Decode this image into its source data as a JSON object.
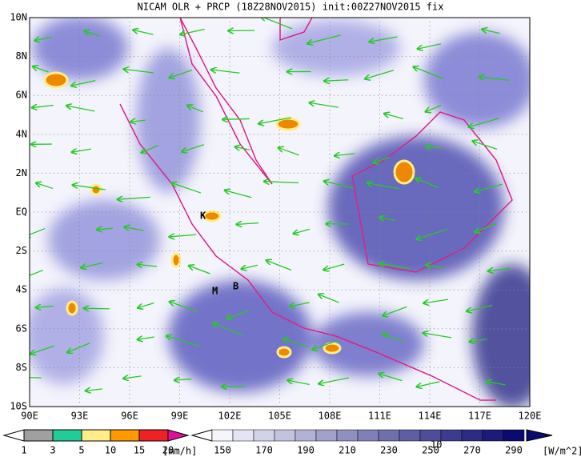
{
  "header": {
    "title": "NICAM OLR + PRCP (18Z28NOV2015) init:00Z27NOV2015 fix"
  },
  "map": {
    "lat_labels": [
      "10N",
      "8N",
      "6N",
      "4N",
      "2N",
      "EQ",
      "2S",
      "4S",
      "6S",
      "8S",
      "10S"
    ],
    "lon_labels": [
      "90E",
      "93E",
      "96E",
      "99E",
      "102E",
      "105E",
      "108E",
      "111E",
      "114E",
      "117E",
      "120E"
    ],
    "place_labels": [
      "K",
      "M",
      "B"
    ],
    "vector_reference": "10"
  },
  "legend": {
    "precipitation": {
      "labels": [
        1,
        3,
        5,
        10,
        15,
        20
      ],
      "unit": "[mm/h]"
    },
    "olr": {
      "labels": [
        150,
        170,
        190,
        210,
        230,
        250,
        270,
        290
      ],
      "unit": "[W/m^2]"
    }
  }
}
